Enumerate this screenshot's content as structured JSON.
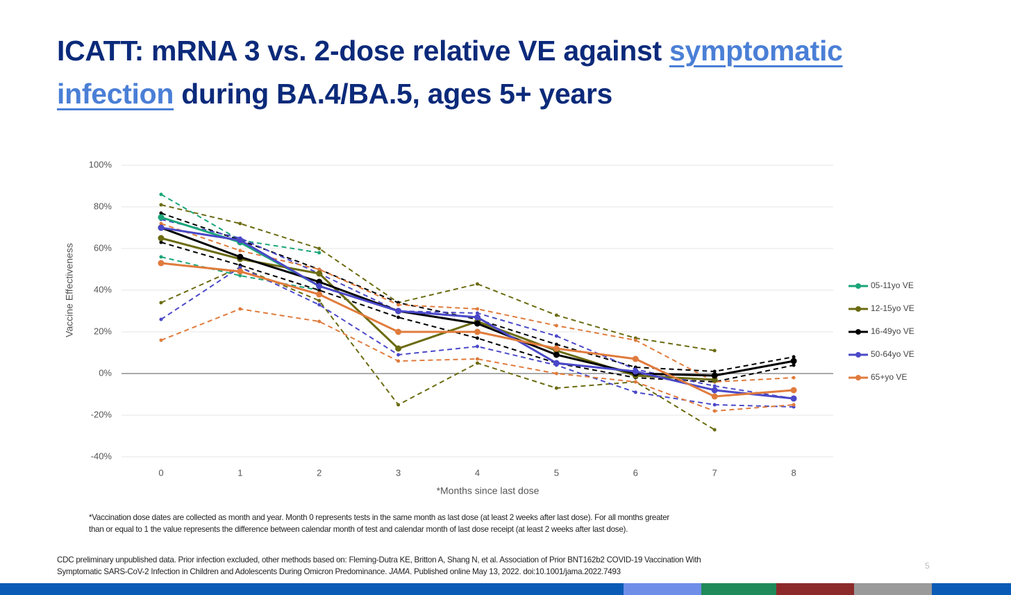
{
  "title_parts": [
    "ICATT: mRNA 3 vs. 2-dose relative VE against ",
    "symptomatic",
    "infection",
    " during BA.4/BA.5, ages 5+ years"
  ],
  "chart_data": {
    "type": "line",
    "ylabel": "Vaccine Effectiveness",
    "xlabel": "*Months since last dose",
    "x": [
      0,
      1,
      2,
      3,
      4,
      5,
      6,
      7,
      8
    ],
    "xlim": [
      -0.5,
      8.5
    ],
    "ylim": [
      -40,
      100
    ],
    "yticks": [
      {
        "value": -40,
        "label": "-40%"
      },
      {
        "value": -20,
        "label": "-20%"
      },
      {
        "value": 0,
        "label": "0%"
      },
      {
        "value": 20,
        "label": "20%"
      },
      {
        "value": 40,
        "label": "40%"
      },
      {
        "value": 60,
        "label": "60%"
      },
      {
        "value": 80,
        "label": "80%"
      },
      {
        "value": 100,
        "label": "100%"
      }
    ],
    "grid": true,
    "legend": "right",
    "series": [
      {
        "name": "05-11yo VE",
        "color": "#1aa579",
        "values": [
          75,
          63,
          42,
          null,
          null,
          null,
          null,
          null,
          null
        ],
        "ci_upper": [
          86,
          64,
          58,
          null,
          null,
          null,
          null,
          null,
          null
        ],
        "ci_lower": [
          56,
          47,
          40,
          null,
          null,
          null,
          null,
          null,
          null
        ]
      },
      {
        "name": "12-15yo VE",
        "color": "#6b6b12",
        "values": [
          65,
          55,
          48,
          12,
          25,
          11,
          -1,
          -3,
          null
        ],
        "ci_upper": [
          81,
          72,
          60,
          34,
          43,
          28,
          17,
          11,
          null
        ],
        "ci_lower": [
          34,
          51,
          35,
          -15,
          5,
          -7,
          -4,
          -27,
          null
        ]
      },
      {
        "name": "16-49yo VE",
        "color": "#000000",
        "values": [
          70,
          56,
          44,
          30,
          24,
          9,
          0,
          -1,
          6
        ],
        "ci_upper": [
          77,
          64,
          50,
          34,
          26,
          14,
          3,
          1,
          8
        ],
        "ci_lower": [
          63,
          52,
          40,
          27,
          17,
          5,
          -2,
          -4,
          4
        ]
      },
      {
        "name": "50-64yo VE",
        "color": "#4a48c8",
        "values": [
          70,
          64,
          42,
          30,
          27,
          5,
          1,
          -8,
          -12
        ],
        "ci_upper": [
          74,
          65,
          48,
          30,
          29,
          18,
          2,
          -6,
          -12
        ],
        "ci_lower": [
          26,
          51,
          33,
          9,
          13,
          4,
          -9,
          -15,
          -16
        ]
      },
      {
        "name": "65+yo VE",
        "color": "#e07b3c",
        "values": [
          53,
          49,
          38,
          20,
          20,
          12,
          7,
          -11,
          -8
        ],
        "ci_upper": [
          72,
          59,
          50,
          33,
          31,
          23,
          16,
          -4,
          -2
        ],
        "ci_lower": [
          16,
          31,
          25,
          6,
          7,
          0,
          -4,
          -18,
          -15
        ]
      }
    ]
  },
  "footnote": [
    "*Vaccination dose dates are collected as month and year. Month 0 represents tests in the same month as last dose (at least 2 weeks after last dose).  For all months greater",
    "than or equal to 1 the value represents the difference between calendar month of test and calendar month of last dose receipt (at least 2 weeks after last dose)."
  ],
  "source": [
    "CDC preliminary unpublished data. Prior infection excluded, other methods based on: Fleming-Dutra KE, Britton A, Shang N, et al. Association of Prior BNT162b2 COVID-19 Vaccination With",
    "Symptomatic SARS-CoV-2 Infection in Children and Adolescents During Omicron Predominance. ",
    "JAMA",
    ". Published online May 13, 2022. doi:10.1001/jama.2022.7493"
  ],
  "page_number": "5"
}
